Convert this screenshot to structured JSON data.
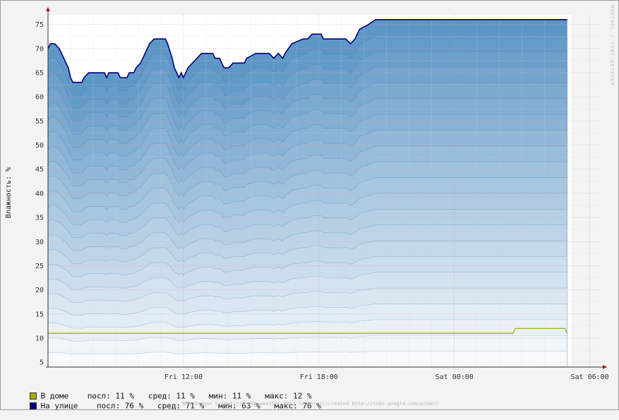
{
  "chart_data": {
    "type": "area",
    "ylabel": "Влажность: %",
    "ylim": [
      4,
      77
    ],
    "yticks": [
      5,
      10,
      15,
      20,
      25,
      30,
      35,
      40,
      45,
      50,
      55,
      60,
      65,
      70,
      75
    ],
    "x_range_hours": [
      6,
      30
    ],
    "xticks": [
      {
        "label": "Fri 12:00",
        "hour": 12
      },
      {
        "label": "Fri 18:00",
        "hour": 18
      },
      {
        "label": "Sat 00:00",
        "hour": 24
      },
      {
        "label": "Sat 06:00",
        "hour": 30
      }
    ],
    "grid": true,
    "series": [
      {
        "name": "В доме",
        "color": "#99aa00",
        "swatch_color": "#aaaa00",
        "legend_text": "В доме    посл: 11 %   сред: 11 %   мин: 11 %   макс: 12 %",
        "points": [
          [
            6.0,
            11
          ],
          [
            26.6,
            11
          ],
          [
            26.7,
            12
          ],
          [
            28.9,
            12
          ],
          [
            29.0,
            11
          ]
        ]
      },
      {
        "name": "На улице",
        "color": "#000080",
        "fill_color": "#5d97c6",
        "swatch_color": "#000080",
        "legend_text": "На улице    посл: 76 %   сред: 71 %   мин: 63 %   макс: 76 %",
        "points": [
          [
            6.0,
            70
          ],
          [
            6.1,
            71
          ],
          [
            6.3,
            71
          ],
          [
            6.5,
            70
          ],
          [
            6.7,
            68
          ],
          [
            6.9,
            66
          ],
          [
            7.0,
            64
          ],
          [
            7.1,
            63
          ],
          [
            7.5,
            63
          ],
          [
            7.6,
            64
          ],
          [
            7.8,
            65
          ],
          [
            8.5,
            65
          ],
          [
            8.6,
            64
          ],
          [
            8.7,
            65
          ],
          [
            9.1,
            65
          ],
          [
            9.2,
            64
          ],
          [
            9.5,
            64
          ],
          [
            9.6,
            65
          ],
          [
            9.8,
            65
          ],
          [
            9.9,
            66
          ],
          [
            10.1,
            67
          ],
          [
            10.3,
            69
          ],
          [
            10.5,
            71
          ],
          [
            10.7,
            72
          ],
          [
            11.2,
            72
          ],
          [
            11.3,
            71
          ],
          [
            11.5,
            68
          ],
          [
            11.6,
            66
          ],
          [
            11.8,
            64
          ],
          [
            11.9,
            65
          ],
          [
            12.0,
            64
          ],
          [
            12.2,
            66
          ],
          [
            12.4,
            67
          ],
          [
            12.6,
            68
          ],
          [
            12.8,
            69
          ],
          [
            13.3,
            69
          ],
          [
            13.4,
            68
          ],
          [
            13.6,
            68
          ],
          [
            13.8,
            66
          ],
          [
            14.0,
            66
          ],
          [
            14.2,
            67
          ],
          [
            14.7,
            67
          ],
          [
            14.8,
            68
          ],
          [
            15.2,
            69
          ],
          [
            15.8,
            69
          ],
          [
            16.0,
            68
          ],
          [
            16.2,
            69
          ],
          [
            16.4,
            68
          ],
          [
            16.5,
            69
          ],
          [
            16.8,
            71
          ],
          [
            17.3,
            72
          ],
          [
            17.5,
            72
          ],
          [
            17.7,
            73
          ],
          [
            18.1,
            73
          ],
          [
            18.2,
            72
          ],
          [
            19.2,
            72
          ],
          [
            19.4,
            71
          ],
          [
            19.6,
            72
          ],
          [
            19.8,
            74
          ],
          [
            20.2,
            75
          ],
          [
            20.5,
            76
          ],
          [
            29.0,
            76
          ]
        ]
      }
    ]
  },
  "footer_text": "WH8 Oregon Scientific USB weather-data logger (c)created http://code.google.com/p/wwr/",
  "side_text": "RRDTOOL / TOBI OETIKER"
}
